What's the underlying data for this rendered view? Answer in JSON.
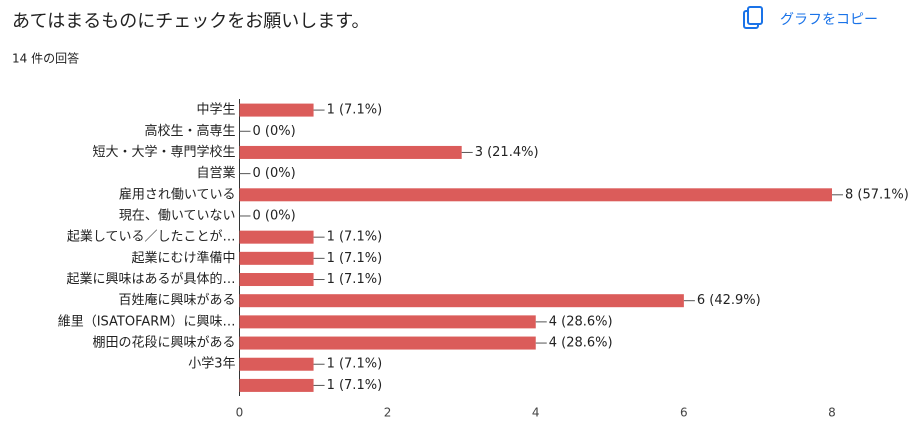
{
  "chart_data": {
    "type": "bar",
    "orientation": "horizontal",
    "title": "あてはまるものにチェックをお願いします。",
    "subtitle": "14 件の回答",
    "button": "グラフをコピー",
    "categories": [
      "中学生",
      "高校生・高専生",
      "短大・大学・専門学校生",
      "自営業",
      "雇用され働いている",
      "現在、働いていない",
      "起業している／したことが…",
      "起業にむけ準備中",
      "起業に興味はあるが具体的…",
      "百姓庵に興味がある",
      "維里（ISATOFARM）に興味…",
      "棚田の花段に興味がある",
      "小学3年",
      null
    ],
    "values": [
      1,
      0,
      3,
      0,
      8,
      0,
      1,
      1,
      1,
      6,
      4,
      4,
      1,
      1
    ],
    "value_labels": [
      "1 (7.1%)",
      "0 (0%)",
      "3 (21.4%)",
      "0 (0%)",
      "8 (57.1%)",
      "0 (0%)",
      "1 (7.1%)",
      "1 (7.1%)",
      "1 (7.1%)",
      "6 (42.9%)",
      "4 (28.6%)",
      "4 (28.6%)",
      "1 (7.1%)",
      "1 (7.1%)"
    ],
    "color": "#db5c5a",
    "xlim": [
      0,
      8
    ],
    "xticks": [
      0,
      2,
      4,
      6,
      8
    ]
  }
}
